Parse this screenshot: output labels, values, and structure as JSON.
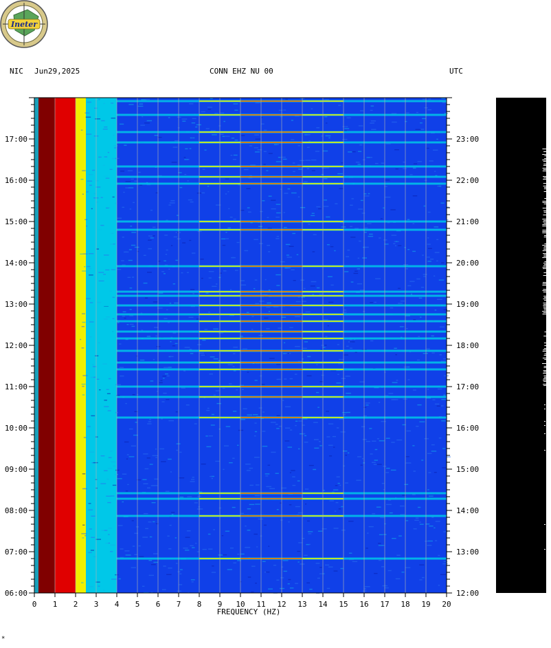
{
  "logo": {
    "text": "Ineter"
  },
  "header": {
    "network": "NIC",
    "date": "Jun29,2025",
    "station": "CONN EHZ NU 00",
    "timezone": "UTC"
  },
  "footnote": "*",
  "colors": {
    "dark_red": "#800000",
    "red": "#e00000",
    "yellow": "#f0f000",
    "cyan": "#00c8e8",
    "blue": "#1040e8",
    "grid": "#b0b0b0"
  },
  "chart_data": {
    "type": "heatmap",
    "title": "",
    "xlabel": "FREQUENCY (HZ)",
    "ylabel": "",
    "xlim": [
      0,
      20
    ],
    "x_ticks": [
      "0",
      "1",
      "2",
      "3",
      "4",
      "5",
      "6",
      "7",
      "8",
      "9",
      "10",
      "11",
      "12",
      "13",
      "14",
      "15",
      "16",
      "17",
      "18",
      "19",
      "20"
    ],
    "left_time_ticks": [
      "17:00",
      "16:00",
      "15:00",
      "14:00",
      "13:00",
      "12:00",
      "11:00",
      "10:00",
      "09:00",
      "08:00",
      "07:00",
      "06:00"
    ],
    "right_time_ticks": [
      "23:00",
      "22:00",
      "21:00",
      "20:00",
      "19:00",
      "18:00",
      "17:00",
      "16:00",
      "15:00",
      "14:00",
      "13:00",
      "12:00"
    ],
    "left_time_range": [
      "06:00",
      "18:00"
    ],
    "right_time_range": [
      "12:00",
      "00:00"
    ],
    "energy_profile": [
      {
        "hz_max": 1.0,
        "level": "dark-red"
      },
      {
        "hz_max": 2.0,
        "level": "red"
      },
      {
        "hz_max": 2.5,
        "level": "yellow"
      },
      {
        "hz_max": 4.0,
        "level": "cyan"
      },
      {
        "hz_max": 20,
        "level": "blue"
      }
    ],
    "horizontal_bands_left_time": [
      "17:55",
      "17:35",
      "17:10",
      "16:55",
      "16:20",
      "16:05",
      "15:55",
      "15:00",
      "14:48",
      "13:55",
      "13:18",
      "13:12",
      "12:58",
      "12:45",
      "12:35",
      "12:20",
      "12:10",
      "11:52",
      "11:35",
      "11:25",
      "11:00",
      "10:45",
      "10:15",
      "08:25",
      "08:17",
      "07:52",
      "06:50"
    ],
    "waveform_color": "#000000"
  }
}
